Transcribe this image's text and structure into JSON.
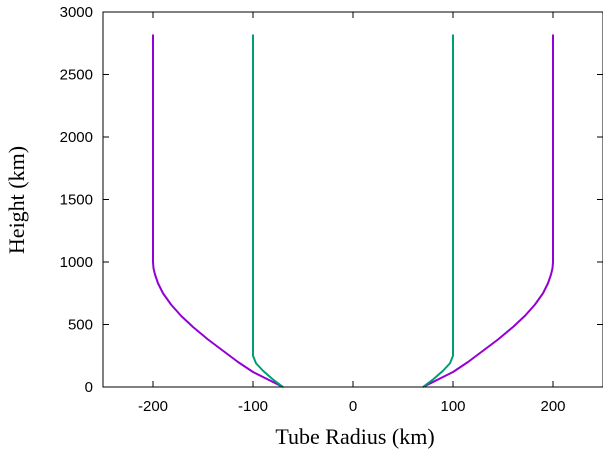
{
  "chart_data": {
    "type": "line",
    "xlabel": "Tube Radius (km)",
    "ylabel": "Height (km)",
    "xlim": [
      -250,
      250
    ],
    "ylim": [
      0,
      3000
    ],
    "xticks": [
      -200,
      -100,
      0,
      100,
      200
    ],
    "yticks": [
      0,
      500,
      1000,
      1500,
      2000,
      2500,
      3000
    ],
    "grid": false,
    "legend": "none",
    "series": [
      {
        "color": "#9400d3",
        "x": [
          70,
          75,
          85,
          100,
          115,
          130,
          145,
          160,
          172,
          182,
          190,
          195,
          198,
          199.5,
          200,
          200,
          200
        ],
        "y": [
          0,
          20,
          60,
          120,
          200,
          290,
          380,
          480,
          570,
          660,
          750,
          830,
          900,
          950,
          1000,
          2000,
          2820
        ],
        "mirrored": true
      },
      {
        "color": "#009e73",
        "x": [
          70,
          80,
          90,
          97,
          100,
          100,
          100
        ],
        "y": [
          0,
          60,
          130,
          190,
          250,
          1500,
          2820
        ],
        "mirrored": true
      }
    ]
  }
}
